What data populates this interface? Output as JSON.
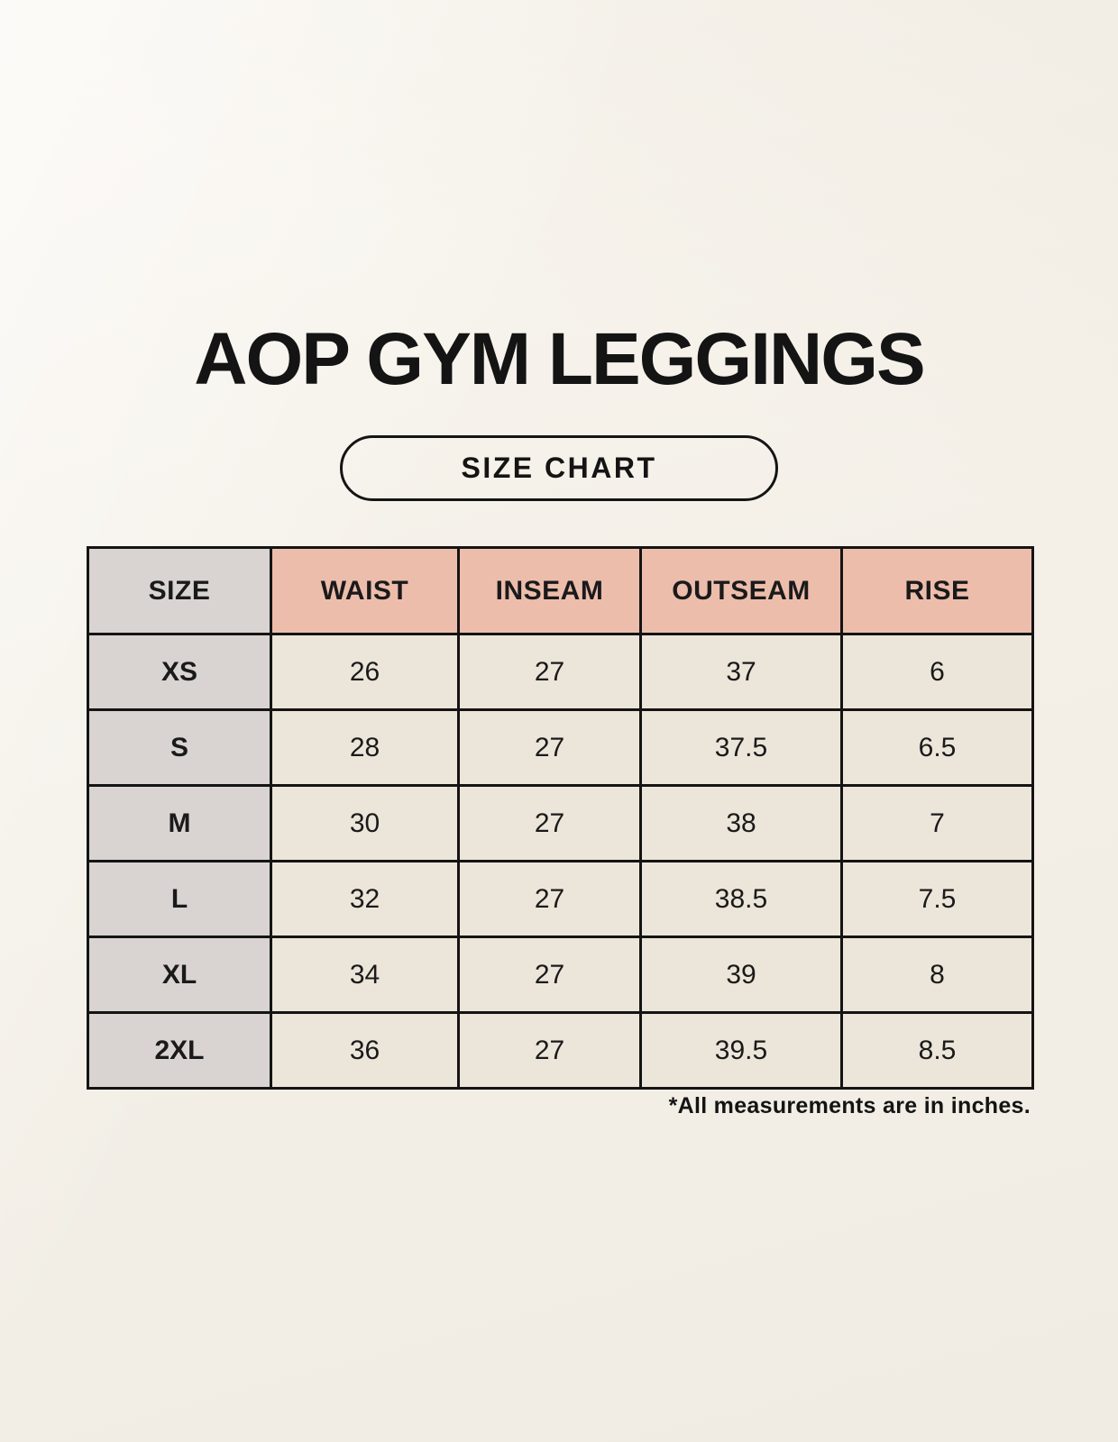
{
  "page": {
    "title": "AOP GYM LEGGINGS",
    "badge_label": "SIZE CHART",
    "footnote": "*All measurements are in inches."
  },
  "colors": {
    "background": "#f4f0e8",
    "header_salmon": "#edbdac",
    "size_column_gray": "#d9d4d1",
    "data_cell_cream": "#ece5d9",
    "border": "#141414",
    "text": "#1a1a1a"
  },
  "chart_data": {
    "type": "table",
    "title": "AOP GYM LEGGINGS — SIZE CHART",
    "columns": [
      "SIZE",
      "WAIST",
      "INSEAM",
      "OUTSEAM",
      "RISE"
    ],
    "rows": [
      [
        "XS",
        "26",
        "27",
        "37",
        "6"
      ],
      [
        "S",
        "28",
        "27",
        "37.5",
        "6.5"
      ],
      [
        "M",
        "30",
        "27",
        "38",
        "7"
      ],
      [
        "L",
        "32",
        "27",
        "38.5",
        "7.5"
      ],
      [
        "XL",
        "34",
        "27",
        "39",
        "8"
      ],
      [
        "2XL",
        "36",
        "27",
        "39.5",
        "8.5"
      ]
    ],
    "units": "inches",
    "footnote": "*All measurements are in inches."
  }
}
